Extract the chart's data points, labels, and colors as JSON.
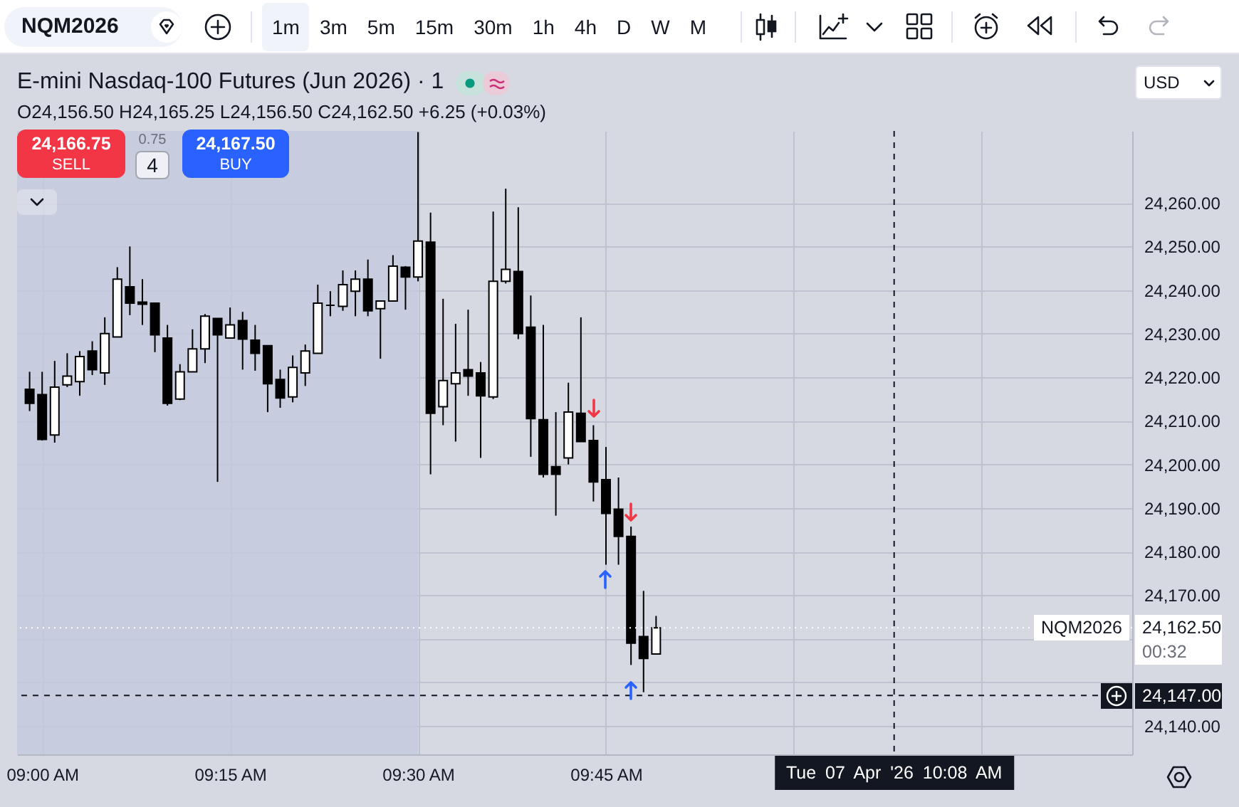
{
  "chart_data": {
    "type": "candlestick",
    "title": "E-mini Nasdaq-100 Futures (Jun 2026) · 1",
    "subtitle": "O24,156.50 H24,165.25 L24,156.50 C24,162.50 +6.25 (+0.03%)",
    "x": [
      "2026-04-07T08:59",
      "2026-04-07T09:00",
      "2026-04-07T09:01",
      "2026-04-07T09:02",
      "2026-04-07T09:03",
      "2026-04-07T09:04",
      "2026-04-07T09:05",
      "2026-04-07T09:06",
      "2026-04-07T09:07",
      "2026-04-07T09:08",
      "2026-04-07T09:09",
      "2026-04-07T09:10",
      "2026-04-07T09:11",
      "2026-04-07T09:12",
      "2026-04-07T09:13",
      "2026-04-07T09:14",
      "2026-04-07T09:15",
      "2026-04-07T09:16",
      "2026-04-07T09:17",
      "2026-04-07T09:18",
      "2026-04-07T09:19",
      "2026-04-07T09:20",
      "2026-04-07T09:21",
      "2026-04-07T09:22",
      "2026-04-07T09:23",
      "2026-04-07T09:24",
      "2026-04-07T09:25",
      "2026-04-07T09:26",
      "2026-04-07T09:27",
      "2026-04-07T09:28",
      "2026-04-07T09:29",
      "2026-04-07T09:30",
      "2026-04-07T09:31",
      "2026-04-07T09:32",
      "2026-04-07T09:33",
      "2026-04-07T09:34",
      "2026-04-07T09:35",
      "2026-04-07T09:36",
      "2026-04-07T09:37",
      "2026-04-07T09:38",
      "2026-04-07T09:39",
      "2026-04-07T09:40",
      "2026-04-07T09:41",
      "2026-04-07T09:42",
      "2026-04-07T09:43",
      "2026-04-07T09:44",
      "2026-04-07T09:45",
      "2026-04-07T09:46",
      "2026-04-07T09:47",
      "2026-04-07T09:48",
      "2026-04-07T09:49"
    ],
    "ohlc": [
      [
        24217.25,
        24221.25,
        24212.25,
        24214.0
      ],
      [
        24216.0,
        24221.25,
        24205.5,
        24205.75
      ],
      [
        24206.75,
        24223.75,
        24205.0,
        24217.75
      ],
      [
        24218.25,
        24225.5,
        24217.75,
        24220.25
      ],
      [
        24219.0,
        24226.0,
        24215.75,
        24224.75
      ],
      [
        24226.0,
        24228.25,
        24220.5,
        24221.75
      ],
      [
        24221.0,
        24233.75,
        24218.25,
        24230.0
      ],
      [
        24229.25,
        24245.25,
        24229.25,
        24242.5
      ],
      [
        24240.75,
        24250.0,
        24234.25,
        24237.0
      ],
      [
        24237.25,
        24242.5,
        24232.0,
        24236.75
      ],
      [
        24237.0,
        24237.0,
        24225.75,
        24229.75
      ],
      [
        24229.0,
        24232.0,
        24213.5,
        24214.0
      ],
      [
        24215.0,
        24223.0,
        24214.75,
        24221.25
      ],
      [
        24221.25,
        24231.0,
        24221.25,
        24226.5
      ],
      [
        24226.5,
        24234.5,
        24223.25,
        24234.0
      ],
      [
        24233.5,
        24233.5,
        24196.0,
        24229.75
      ],
      [
        24229.0,
        24236.0,
        24229.0,
        24232.0
      ],
      [
        24233.0,
        24235.0,
        24221.75,
        24228.75
      ],
      [
        24228.5,
        24232.0,
        24221.5,
        24225.5
      ],
      [
        24227.25,
        24227.25,
        24212.0,
        24218.5
      ],
      [
        24219.5,
        24221.75,
        24213.0,
        24215.25
      ],
      [
        24215.5,
        24225.0,
        24214.25,
        24222.25
      ],
      [
        24221.0,
        24227.5,
        24218.0,
        24226.0
      ],
      [
        24225.5,
        24241.25,
        24225.5,
        24237.0
      ],
      [
        24236.5,
        24239.75,
        24234.0,
        24236.5
      ],
      [
        24236.25,
        24244.5,
        24235.25,
        24241.25
      ],
      [
        24239.75,
        24244.5,
        24234.0,
        24242.5
      ],
      [
        24242.5,
        24247.0,
        24234.0,
        24235.25
      ],
      [
        24235.75,
        24237.5,
        24224.25,
        24237.5
      ],
      [
        24237.5,
        24248.0,
        24237.5,
        24245.5
      ],
      [
        24245.25,
        24245.5,
        24235.5,
        24243.0
      ],
      [
        24243.0,
        24276.25,
        24242.0,
        24251.25
      ],
      [
        24251.0,
        24257.75,
        24197.75,
        24211.75
      ],
      [
        24213.25,
        24238.0,
        24209.0,
        24219.25
      ],
      [
        24218.5,
        24232.25,
        24205.25,
        24221.0
      ],
      [
        24221.75,
        24235.5,
        24215.75,
        24220.25
      ],
      [
        24221.0,
        24223.5,
        24201.5,
        24215.75
      ],
      [
        24215.5,
        24258.0,
        24215.0,
        24242.0
      ],
      [
        24242.0,
        24263.25,
        24241.5,
        24244.75
      ],
      [
        24244.25,
        24259.0,
        24228.75,
        24230.0
      ],
      [
        24231.5,
        24238.75,
        24201.75,
        24210.5
      ],
      [
        24210.25,
        24232.0,
        24197.0,
        24197.75
      ],
      [
        24199.5,
        24212.0,
        24188.25,
        24197.75
      ],
      [
        24201.5,
        24218.75,
        24200.0,
        24212.0
      ],
      [
        24211.75,
        24233.75,
        24205.25,
        24205.25
      ],
      [
        24205.5,
        24209.0,
        24191.5,
        24196.0
      ],
      [
        24196.5,
        24204.0,
        24177.0,
        24188.75
      ],
      [
        24189.75,
        24197.0,
        24177.0,
        24183.5
      ],
      [
        24183.5,
        24185.75,
        24154.0,
        24159.0
      ],
      [
        24160.5,
        24171.0,
        24147.75,
        24155.5
      ],
      [
        24156.5,
        24165.25,
        24156.5,
        24162.5
      ]
    ],
    "xlim": [
      "2026-04-07T08:58",
      "2026-04-07T10:27"
    ],
    "ylim": [
      24133.5,
      24276.5
    ],
    "xticks": [
      {
        "value": "2026-04-07T09:00",
        "label": "09:00 AM"
      },
      {
        "value": "2026-04-07T09:15",
        "label": "09:15 AM"
      },
      {
        "value": "2026-04-07T09:30",
        "label": "09:30 AM"
      },
      {
        "value": "2026-04-07T09:45",
        "label": "09:45 AM"
      },
      {
        "value": "2026-04-07T10:00",
        "label": null
      },
      {
        "value": "2026-04-07T10:15",
        "label": null
      }
    ],
    "yticks": [
      {
        "value": 24140,
        "label": "24,140.00"
      },
      {
        "value": 24150,
        "label": null
      },
      {
        "value": 24160,
        "label": null
      },
      {
        "value": 24170,
        "label": "24,170.00"
      },
      {
        "value": 24180,
        "label": "24,180.00"
      },
      {
        "value": 24190,
        "label": "24,190.00"
      },
      {
        "value": 24200,
        "label": "24,200.00"
      },
      {
        "value": 24210,
        "label": "24,210.00"
      },
      {
        "value": 24220,
        "label": "24,220.00"
      },
      {
        "value": 24230,
        "label": "24,230.00"
      },
      {
        "value": 24240,
        "label": "24,240.00"
      },
      {
        "value": 24250,
        "label": "24,250.00"
      },
      {
        "value": 24260,
        "label": "24,260.00"
      }
    ],
    "grid": true,
    "bands": [
      {
        "axis": "x",
        "from": "2026-04-07T08:58",
        "to": "2026-04-07T09:30",
        "color": "#c4c9de"
      }
    ],
    "ref_lines": [
      {
        "axis": "y",
        "value": 24162.5,
        "label": "24,162.50",
        "color": "#ffffff",
        "line_style": "dotted"
      },
      {
        "axis": "y",
        "value": 24147,
        "label": "24,147.00",
        "color": "#131722",
        "line_style": "dashed"
      },
      {
        "axis": "x",
        "value": "2026-04-07T10:08",
        "label": "Tue 07 Apr '26 10:08 AM",
        "color": "#131722",
        "line_style": "dashed"
      }
    ],
    "annotations": [
      "NQM2026",
      "1m",
      "3m",
      "5m",
      "15m",
      "30m",
      "1h",
      "4h",
      "D",
      "W",
      "M",
      "USD",
      "24,166.75",
      "SELL",
      "0.75",
      "4",
      "24,167.50",
      "BUY",
      "NQM2026",
      "00:32"
    ]
  }
}
